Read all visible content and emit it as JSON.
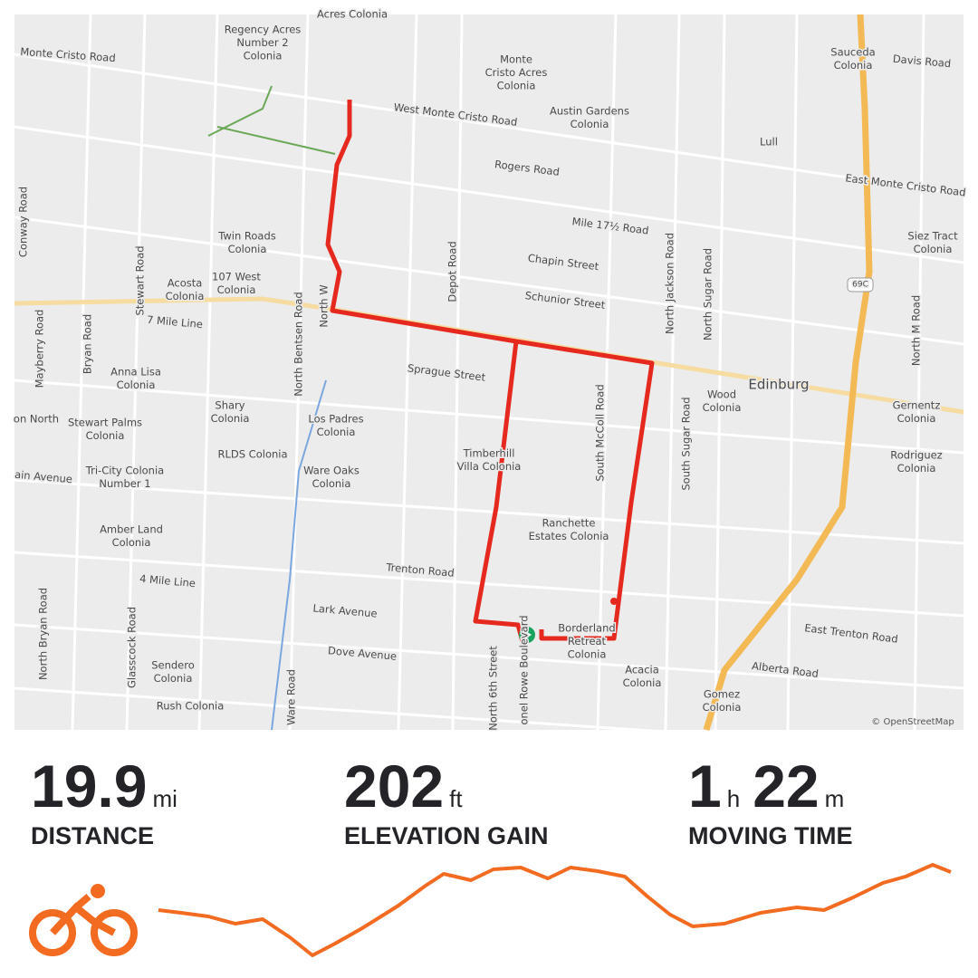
{
  "map": {
    "attribution": "© OpenStreetMap",
    "labels": [
      {
        "lines": [
          "Monte Cristo Road"
        ]
      },
      {
        "lines": [
          "West Monte Cristo Road"
        ]
      },
      {
        "lines": [
          "Regency Acres",
          "Number 2",
          "Colonia"
        ]
      },
      {
        "lines": [
          "Monte",
          "Cristo Acres",
          "Colonia"
        ]
      },
      {
        "lines": [
          "Austin Gardens",
          "Colonia"
        ]
      },
      {
        "lines": [
          "Sauceda",
          "Colonia"
        ]
      },
      {
        "lines": [
          "Davis Road"
        ]
      },
      {
        "lines": [
          "Lull"
        ]
      },
      {
        "lines": [
          "Rogers Road"
        ]
      },
      {
        "lines": [
          "East Monte Cristo Road"
        ]
      },
      {
        "lines": [
          "Mile 17½ Road"
        ]
      },
      {
        "lines": [
          "Siez Tract",
          "Colonia"
        ]
      },
      {
        "lines": [
          "Twin Roads",
          "Colonia"
        ]
      },
      {
        "lines": [
          "Chapin Street"
        ]
      },
      {
        "lines": [
          "Conway Road"
        ]
      },
      {
        "lines": [
          "Stewart Road"
        ]
      },
      {
        "lines": [
          "Acosta",
          "Colonia"
        ]
      },
      {
        "lines": [
          "107 West",
          "Colonia"
        ]
      },
      {
        "lines": [
          "Depot Road"
        ]
      },
      {
        "lines": [
          "Schunior Street"
        ]
      },
      {
        "lines": [
          "North Jackson Road"
        ]
      },
      {
        "lines": [
          "North Sugar Road"
        ]
      },
      {
        "lines": [
          "7 Mile Line"
        ]
      },
      {
        "lines": [
          "Mayberry Road"
        ]
      },
      {
        "lines": [
          "Bryan Road"
        ]
      },
      {
        "lines": [
          "North Bentsen Road"
        ]
      },
      {
        "lines": [
          "North W"
        ]
      },
      {
        "lines": [
          "North M Road"
        ]
      },
      {
        "lines": [
          "Anna Lisa",
          "Colonia"
        ]
      },
      {
        "lines": [
          "Sprague Street"
        ]
      },
      {
        "lines": [
          "Edinburg"
        ]
      },
      {
        "lines": [
          "Wood",
          "Colonia"
        ]
      },
      {
        "lines": [
          "South McColl Road"
        ]
      },
      {
        "lines": [
          "Gernentz",
          "Colonia"
        ]
      },
      {
        "lines": [
          "Shary",
          "Colonia"
        ]
      },
      {
        "lines": [
          "Stewart Palms",
          "Colonia"
        ]
      },
      {
        "lines": [
          "on North"
        ]
      },
      {
        "lines": [
          "Los Padres",
          "Colonia"
        ]
      },
      {
        "lines": [
          "RLDS Colonia"
        ]
      },
      {
        "lines": [
          "Timberhill",
          "Villa Colonia"
        ]
      },
      {
        "lines": [
          "South Sugar Road"
        ]
      },
      {
        "lines": [
          "Rodriguez",
          "Colonia"
        ]
      },
      {
        "lines": [
          "Tri-City Colonia",
          "Number 1"
        ]
      },
      {
        "lines": [
          "ain Avenue"
        ]
      },
      {
        "lines": [
          "Ware Oaks",
          "Colonia"
        ]
      },
      {
        "lines": [
          "Ranchette",
          "Estates Colonia"
        ]
      },
      {
        "lines": [
          "Amber Land",
          "Colonia"
        ]
      },
      {
        "lines": [
          "4 Mile Line"
        ]
      },
      {
        "lines": [
          "Trenton Road"
        ]
      },
      {
        "lines": [
          "Lark Avenue"
        ]
      },
      {
        "lines": [
          "North Bryan Road"
        ]
      },
      {
        "lines": [
          "Glasscock Road"
        ]
      },
      {
        "lines": [
          "Borderland",
          "Retreat",
          "Colonia"
        ]
      },
      {
        "lines": [
          "East Trenton Road"
        ]
      },
      {
        "lines": [
          "Dove Avenue"
        ]
      },
      {
        "lines": [
          "Sendero",
          "Colonia"
        ]
      },
      {
        "lines": [
          "Acacia",
          "Colonia"
        ]
      },
      {
        "lines": [
          "Alberta Road"
        ]
      },
      {
        "lines": [
          "North 6th Street"
        ]
      },
      {
        "lines": [
          "onel Rowe Boulevard"
        ]
      },
      {
        "lines": [
          "Ware Road"
        ]
      },
      {
        "lines": [
          "Rush Colonia"
        ]
      },
      {
        "lines": [
          "Gomez",
          "Colonia"
        ]
      },
      {
        "lines": [
          "Acres Colonia"
        ]
      },
      {
        "lines": [
          "69C"
        ]
      }
    ]
  },
  "stats": [
    {
      "parts": [
        {
          "value": 19.9,
          "unit": "mi"
        }
      ],
      "label": "DISTANCE"
    },
    {
      "parts": [
        {
          "value": 202,
          "unit": "ft"
        }
      ],
      "label": "ELEVATION GAIN"
    },
    {
      "parts": [
        {
          "value": 1,
          "unit": "h"
        },
        {
          "value": 22,
          "unit": "m"
        }
      ],
      "label": "MOVING TIME"
    }
  ]
}
